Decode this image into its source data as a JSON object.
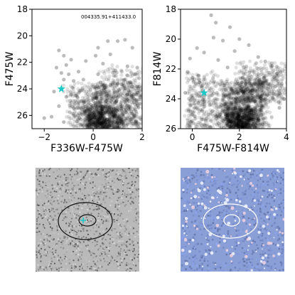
{
  "chart_data": [
    {
      "type": "scatter",
      "id": "cmd-f336w",
      "annotation": "004335.91+411433.0",
      "xlabel": "F336W-F475W",
      "ylabel": "F475W",
      "xlim": [
        -2.5,
        2
      ],
      "ylim": [
        27,
        18
      ],
      "y_inverted": true,
      "xticks": [
        -2,
        0,
        2
      ],
      "yticks": [
        18,
        20,
        22,
        24,
        26
      ],
      "xtick_labels": [
        "−2",
        "0",
        "2"
      ],
      "ytick_labels": [
        "18",
        "20",
        "22",
        "24",
        "26"
      ],
      "point_color": "#000000",
      "point_alpha": 0.12,
      "star_color": "#1ec8c8",
      "star": {
        "x": -1.3,
        "y": 24.0
      },
      "sparse_points": [
        [
          0.6,
          20.4
        ],
        [
          1.0,
          20.4
        ],
        [
          1.3,
          20.3
        ],
        [
          0.2,
          20.9
        ],
        [
          1.6,
          20.9
        ],
        [
          -1.2,
          21.5
        ],
        [
          -1.4,
          21.1
        ],
        [
          -1.1,
          22.2
        ],
        [
          0.4,
          22.1
        ],
        [
          1.4,
          22.3
        ],
        [
          -1.3,
          22.8
        ],
        [
          -1.0,
          22.9
        ],
        [
          -0.6,
          22.7
        ],
        [
          0.2,
          22.9
        ],
        [
          0.9,
          22.6
        ],
        [
          1.8,
          22.4
        ],
        [
          -1.2,
          23.3
        ],
        [
          -0.8,
          23.4
        ],
        [
          -0.4,
          23.3
        ],
        [
          0.3,
          23.5
        ],
        [
          1.0,
          23.6
        ],
        [
          1.5,
          23.5
        ],
        [
          -1.6,
          24.2
        ],
        [
          -1.1,
          24.6
        ],
        [
          -0.7,
          24.5
        ],
        [
          -1.4,
          25.3
        ],
        [
          -1.7,
          26.1
        ],
        [
          -2.0,
          26.2
        ],
        [
          -1.2,
          26.5
        ],
        [
          -0.4,
          26.8
        ],
        [
          0.1,
          21.5
        ],
        [
          -0.3,
          21.9
        ],
        [
          -0.9,
          21.8
        ],
        [
          0.7,
          21.4
        ],
        [
          -1.5,
          22.4
        ]
      ],
      "locus": [
        {
          "x0": -1.0,
          "x1": 0.6,
          "y0": 23.6,
          "y1": 26.8,
          "n": 380,
          "spread": 0.18
        },
        {
          "x0": 0.0,
          "x1": 2.0,
          "y0": 23.6,
          "y1": 26.9,
          "n": 650,
          "spread": 0.35
        },
        {
          "x0": -0.3,
          "x1": 1.1,
          "y0": 25.3,
          "y1": 27.0,
          "n": 550,
          "spread": 0.25
        },
        {
          "x0": 0.6,
          "x1": 2.0,
          "y0": 22.4,
          "y1": 24.6,
          "n": 140,
          "spread": 0.45
        }
      ]
    },
    {
      "type": "scatter",
      "id": "cmd-f814w",
      "xlabel": "F475W-F814W",
      "ylabel": "F814W",
      "xlim": [
        -0.5,
        4
      ],
      "ylim": [
        26,
        18
      ],
      "y_inverted": true,
      "xticks": [
        0,
        2,
        4
      ],
      "yticks": [
        18,
        20,
        22,
        24,
        26
      ],
      "xtick_labels": [
        "0",
        "2",
        "4"
      ],
      "ytick_labels": [
        "18",
        "20",
        "22",
        "24",
        "26"
      ],
      "point_color": "#000000",
      "point_alpha": 0.12,
      "star_color": "#1ec8c8",
      "star": {
        "x": 0.5,
        "y": 23.6
      },
      "sparse_points": [
        [
          0.8,
          18.4
        ],
        [
          1.0,
          18.9
        ],
        [
          1.6,
          19.2
        ],
        [
          0.9,
          19.9
        ],
        [
          1.3,
          20.1
        ],
        [
          2.0,
          20.0
        ],
        [
          0.2,
          20.6
        ],
        [
          0.5,
          20.9
        ],
        [
          1.8,
          20.8
        ],
        [
          2.4,
          20.4
        ],
        [
          -0.1,
          21.3
        ],
        [
          1.1,
          21.4
        ],
        [
          2.8,
          21.2
        ],
        [
          3.1,
          21.5
        ],
        [
          3.4,
          21.8
        ],
        [
          -0.2,
          22.2
        ],
        [
          0.0,
          22.6
        ],
        [
          0.3,
          22.9
        ],
        [
          3.6,
          22.3
        ],
        [
          3.8,
          23.0
        ],
        [
          -0.3,
          23.6
        ],
        [
          0.1,
          24.1
        ],
        [
          3.9,
          24.0
        ],
        [
          3.7,
          24.6
        ],
        [
          1.5,
          21.9
        ]
      ],
      "locus": [
        {
          "x0": 1.2,
          "x1": 3.1,
          "y0": 22.8,
          "y1": 26.0,
          "n": 950,
          "spread": 0.3
        },
        {
          "x0": 2.0,
          "x1": 3.9,
          "y0": 21.5,
          "y1": 24.2,
          "n": 420,
          "spread": 0.35
        },
        {
          "x0": -0.2,
          "x1": 1.1,
          "y0": 22.2,
          "y1": 26.0,
          "n": 320,
          "spread": 0.15
        },
        {
          "x0": 1.5,
          "x1": 2.6,
          "y0": 24.6,
          "y1": 26.0,
          "n": 500,
          "spread": 0.2
        }
      ]
    }
  ],
  "images": [
    {
      "id": "grayscale-cutout",
      "palette": "grayscale",
      "ellipse_color": "#111111",
      "marker_color": "#1ec8c8"
    },
    {
      "id": "color-cutout",
      "palette": "blue-white",
      "ellipse_color": "#ffffff"
    }
  ]
}
